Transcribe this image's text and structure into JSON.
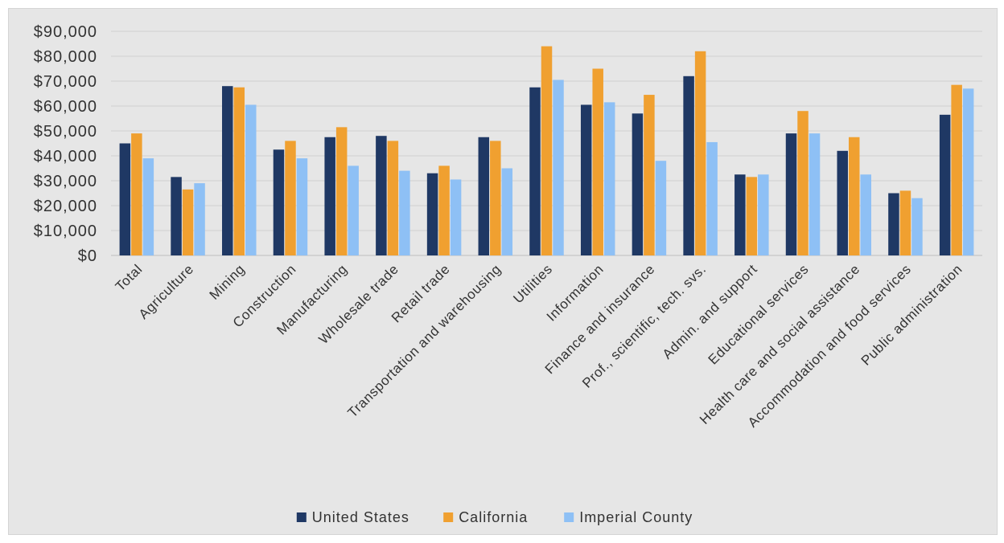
{
  "chart_data": {
    "type": "bar",
    "title": "",
    "xlabel": "",
    "ylabel": "",
    "ylim": [
      0,
      90000
    ],
    "ytick_values": [
      0,
      10000,
      20000,
      30000,
      40000,
      50000,
      60000,
      70000,
      80000,
      90000
    ],
    "ytick_labels": [
      "$0",
      "$10,000",
      "$20,000",
      "$30,000",
      "$40,000",
      "$50,000",
      "$60,000",
      "$70,000",
      "$80,000",
      "$90,000"
    ],
    "grid": true,
    "legend_position": "bottom",
    "categories": [
      "Total",
      "Agriculture",
      "Mining",
      "Construction",
      "Manufacturing",
      "Wholesale trade",
      "Retail trade",
      "Transportation and warehousing",
      "Utilities",
      "Information",
      "Finance and insurance",
      "Prof., scientific, tech. svs.",
      "Admin. and support",
      "Educational services",
      "Health care and social assistance",
      "Accommodation and food services",
      "Public administration"
    ],
    "series": [
      {
        "name": "United States",
        "color": "#1f3864",
        "values": [
          45000,
          31500,
          68000,
          42500,
          47500,
          48000,
          33000,
          47500,
          67500,
          60500,
          57000,
          72000,
          32500,
          49000,
          42000,
          25000,
          56500
        ]
      },
      {
        "name": "California",
        "color": "#f0a030",
        "values": [
          49000,
          26500,
          67500,
          46000,
          51500,
          46000,
          36000,
          46000,
          84000,
          75000,
          64500,
          82000,
          31500,
          58000,
          47500,
          26000,
          68500
        ]
      },
      {
        "name": "Imperial County",
        "color": "#8ec0f5",
        "values": [
          39000,
          29000,
          60500,
          39000,
          36000,
          34000,
          30500,
          35000,
          70500,
          61500,
          38000,
          45500,
          32500,
          49000,
          32500,
          23000,
          67000
        ]
      }
    ]
  }
}
